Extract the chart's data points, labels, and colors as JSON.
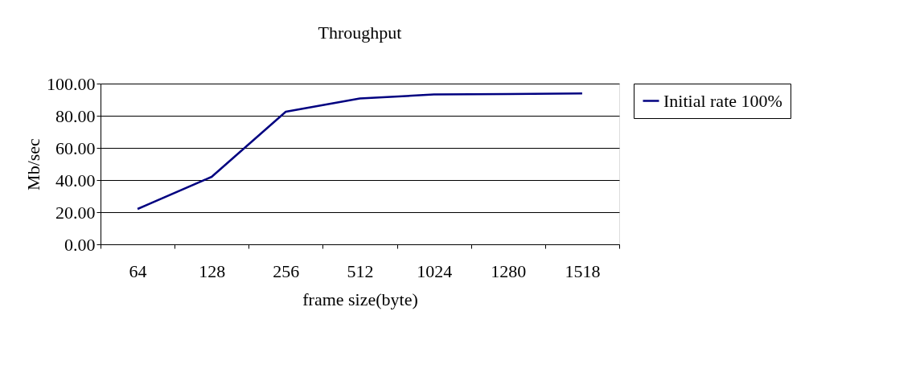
{
  "chart_data": {
    "type": "line",
    "title": "Throughput",
    "xlabel": "frame size(byte)",
    "ylabel": "Mb/sec",
    "categories": [
      "64",
      "128",
      "256",
      "512",
      "1024",
      "1280",
      "1518"
    ],
    "series": [
      {
        "name": "Initial rate 100%",
        "color": "#000080",
        "values": [
          22.0,
          42.0,
          82.5,
          90.7,
          93.2,
          93.5,
          93.9
        ]
      }
    ],
    "ylim": [
      0,
      100
    ],
    "yticks": [
      {
        "value": 0,
        "label": "0.00"
      },
      {
        "value": 20,
        "label": "20.00"
      },
      {
        "value": 40,
        "label": "40.00"
      },
      {
        "value": 60,
        "label": "60.00"
      },
      {
        "value": 80,
        "label": "80.00"
      },
      {
        "value": 100,
        "label": "100.00"
      }
    ],
    "grid": "y",
    "legend": "right",
    "marker": "none",
    "line_style": "solid"
  }
}
